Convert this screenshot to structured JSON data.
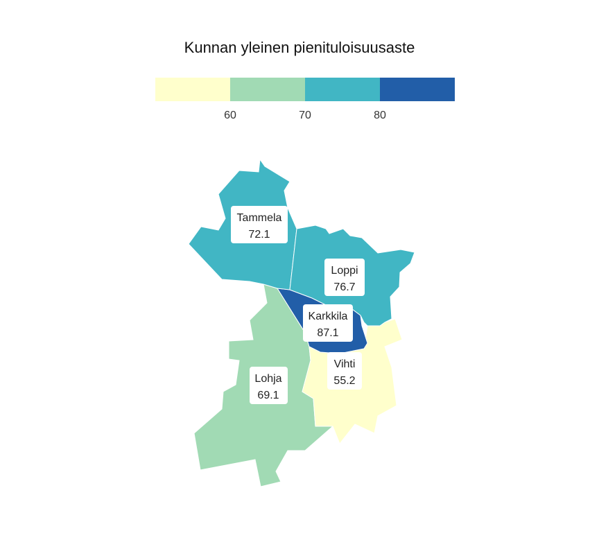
{
  "title": "Kunnan yleinen pienituloisuusaste",
  "legend": {
    "bins": [
      {
        "color": "#ffffcc"
      },
      {
        "color": "#a1dab4"
      },
      {
        "color": "#41b6c4"
      },
      {
        "color": "#225ea8"
      }
    ],
    "ticks": [
      "60",
      "70",
      "80"
    ]
  },
  "regions": [
    {
      "name": "Tammela",
      "value": "72.1",
      "color": "#41b6c4"
    },
    {
      "name": "Loppi",
      "value": "76.7",
      "color": "#41b6c4"
    },
    {
      "name": "Karkkila",
      "value": "87.1",
      "color": "#225ea8"
    },
    {
      "name": "Vihti",
      "value": "55.2",
      "color": "#ffffcc"
    },
    {
      "name": "Lohja",
      "value": "69.1",
      "color": "#a1dab4"
    }
  ]
}
